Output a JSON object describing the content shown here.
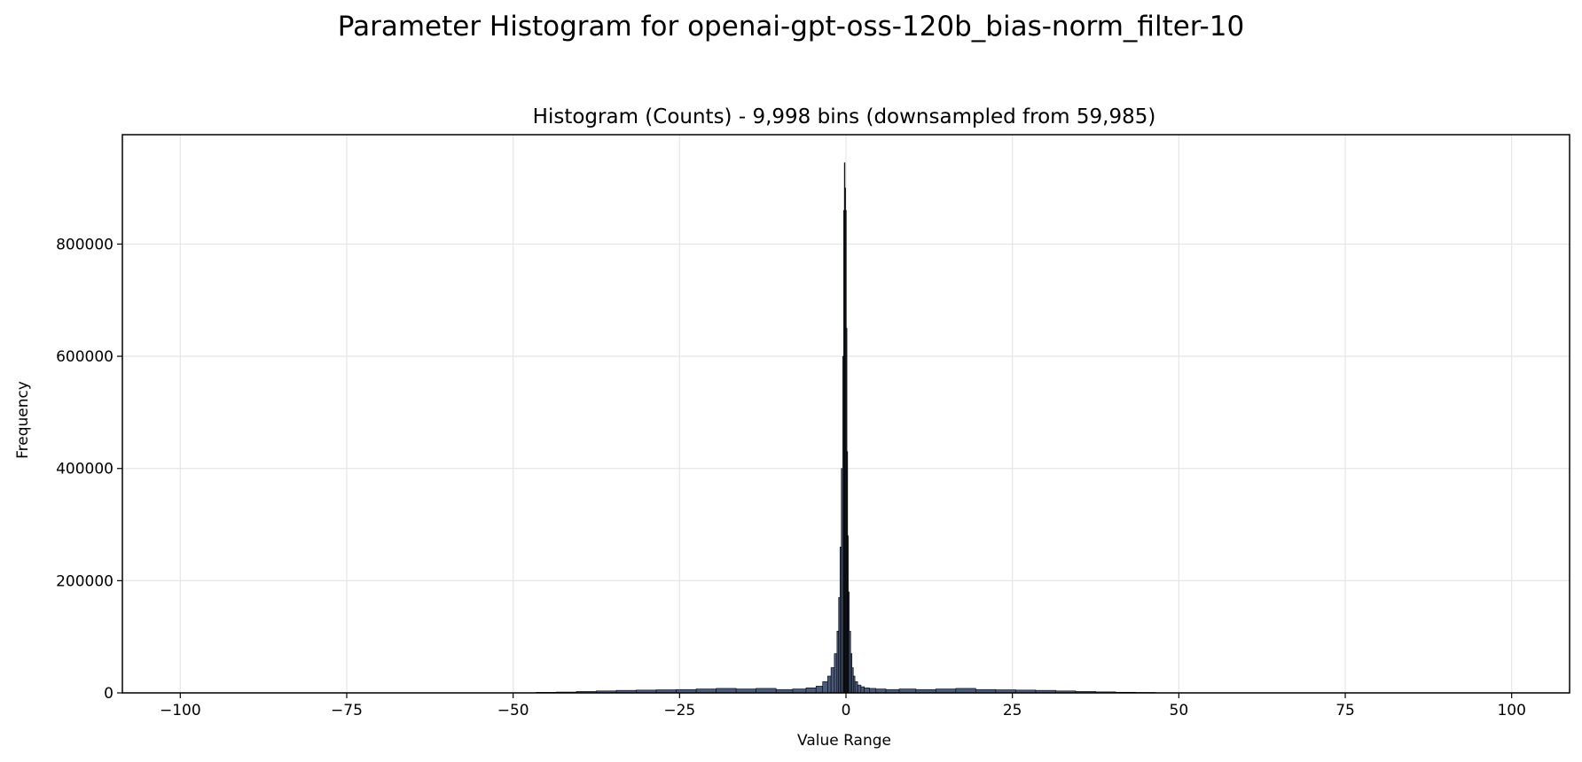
{
  "chart_data": {
    "type": "bar",
    "title": "Parameter Histogram for openai-gpt-oss-120b_bias-norm_filter-10",
    "subtitle": "Histogram (Counts) - 9,998 bins (downsampled from 59,985)",
    "xlabel": "Value Range",
    "ylabel": "Frequency",
    "xlim": [
      -108.7,
      108.7
    ],
    "ylim": [
      0,
      995000
    ],
    "xticks": [
      -100,
      -75,
      -50,
      -25,
      0,
      25,
      50,
      75,
      100
    ],
    "xtick_labels": [
      "−100",
      "−75",
      "−50",
      "−25",
      "0",
      "25",
      "50",
      "75",
      "100"
    ],
    "yticks": [
      0,
      200000,
      400000,
      600000,
      800000
    ],
    "ytick_labels": [
      "0",
      "200000",
      "400000",
      "600000",
      "800000"
    ],
    "grid": true,
    "bar_fill": "#4a5a7a",
    "bar_edge": "#000000",
    "bins": {
      "x": [
        -45,
        -42,
        -39,
        -36,
        -33,
        -30,
        -27,
        -24,
        -21,
        -18,
        -15,
        -12,
        -9,
        -7,
        -5,
        -4,
        -3,
        -2.5,
        -2,
        -1.5,
        -1.2,
        -1,
        -0.8,
        -0.6,
        -0.4,
        -0.3,
        -0.2,
        -0.1,
        0,
        0.1,
        0.2,
        0.3,
        0.4,
        0.6,
        0.8,
        1,
        1.2,
        1.5,
        2,
        2.5,
        3,
        4,
        5,
        7,
        9,
        12,
        15,
        18,
        21,
        24,
        27,
        30,
        33,
        36,
        39,
        42,
        45
      ],
      "counts": [
        1000,
        1500,
        2500,
        3500,
        4500,
        5000,
        5500,
        6000,
        7000,
        8000,
        7000,
        8000,
        6000,
        7000,
        9000,
        12000,
        20000,
        30000,
        45000,
        70000,
        110000,
        170000,
        260000,
        400000,
        600000,
        860000,
        945000,
        900000,
        860000,
        650000,
        430000,
        280000,
        180000,
        110000,
        70000,
        45000,
        30000,
        20000,
        14000,
        11000,
        9000,
        8000,
        7000,
        6000,
        7000,
        6000,
        7000,
        8000,
        6000,
        5500,
        5000,
        4500,
        3500,
        2500,
        1800,
        1200,
        800
      ]
    }
  }
}
